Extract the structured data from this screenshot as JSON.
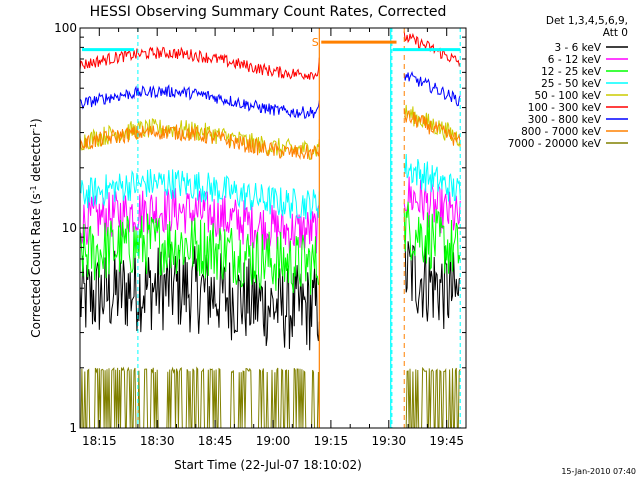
{
  "chart_data": {
    "type": "line",
    "title": "HESSI Observing Summary Count Rates, Corrected",
    "xlabel": "Start Time (22-Jul-07 18:10:02)",
    "ylabel_main": "Corrected Count Rate (s",
    "ylabel_sup1": "-1",
    "ylabel_mid": " detector",
    "ylabel_sup2": "-1",
    "ylabel_end": ")",
    "y_scale": "log",
    "ylim": [
      1,
      100
    ],
    "y_ticks": [
      {
        "v": 1,
        "label": "1"
      },
      {
        "v": 10,
        "label": "10"
      },
      {
        "v": 100,
        "label": "100"
      }
    ],
    "xlim_minutes": [
      0,
      100
    ],
    "x_ticks": [
      {
        "m": 5,
        "label": "18:15"
      },
      {
        "m": 20,
        "label": "18:30"
      },
      {
        "m": 35,
        "label": "18:45"
      },
      {
        "m": 50,
        "label": "19:00"
      },
      {
        "m": 65,
        "label": "19:15"
      },
      {
        "m": 80,
        "label": "19:30"
      },
      {
        "m": 95,
        "label": "19:45"
      }
    ],
    "legend_header": [
      "Det 1,3,4,5,6,9,",
      "Att 0"
    ],
    "legend_position": "right",
    "series": [
      {
        "name": "3 - 6 keV",
        "color": "#000000",
        "level": 4.5,
        "jitter": 0.22
      },
      {
        "name": "6 - 12 keV",
        "color": "#ff00ff",
        "level": 11,
        "jitter": 0.12
      },
      {
        "name": "12 - 25 keV",
        "color": "#00ff00",
        "level": 7.5,
        "jitter": 0.16
      },
      {
        "name": "25 - 50 keV",
        "color": "#00ffff",
        "level": 15,
        "jitter": 0.08
      },
      {
        "name": "50 - 100 keV",
        "color": "#cccc00",
        "level": 28,
        "jitter": 0.05
      },
      {
        "name": "100 - 300 keV",
        "color": "#ff0000",
        "level": 67,
        "jitter": 0.03
      },
      {
        "name": "300 - 800 keV",
        "color": "#0000ff",
        "level": 43,
        "jitter": 0.03
      },
      {
        "name": "800 - 7000 keV",
        "color": "#ff8000",
        "level": 27,
        "jitter": 0.04
      },
      {
        "name": "7000 - 20000 keV",
        "color": "#808000",
        "level": 1.5,
        "jitter": 0.25
      }
    ],
    "annotations": {
      "saa_flag": "S",
      "saa_start_min": 62.5,
      "saa_end_min": 82,
      "night_start_min": 62,
      "night_end_min": 80.5,
      "dashed_cyan_min": [
        15,
        80.8,
        98.5
      ],
      "dashed_orange_min": 84
    },
    "footer_date": "15-Jan-2010 07:40"
  }
}
